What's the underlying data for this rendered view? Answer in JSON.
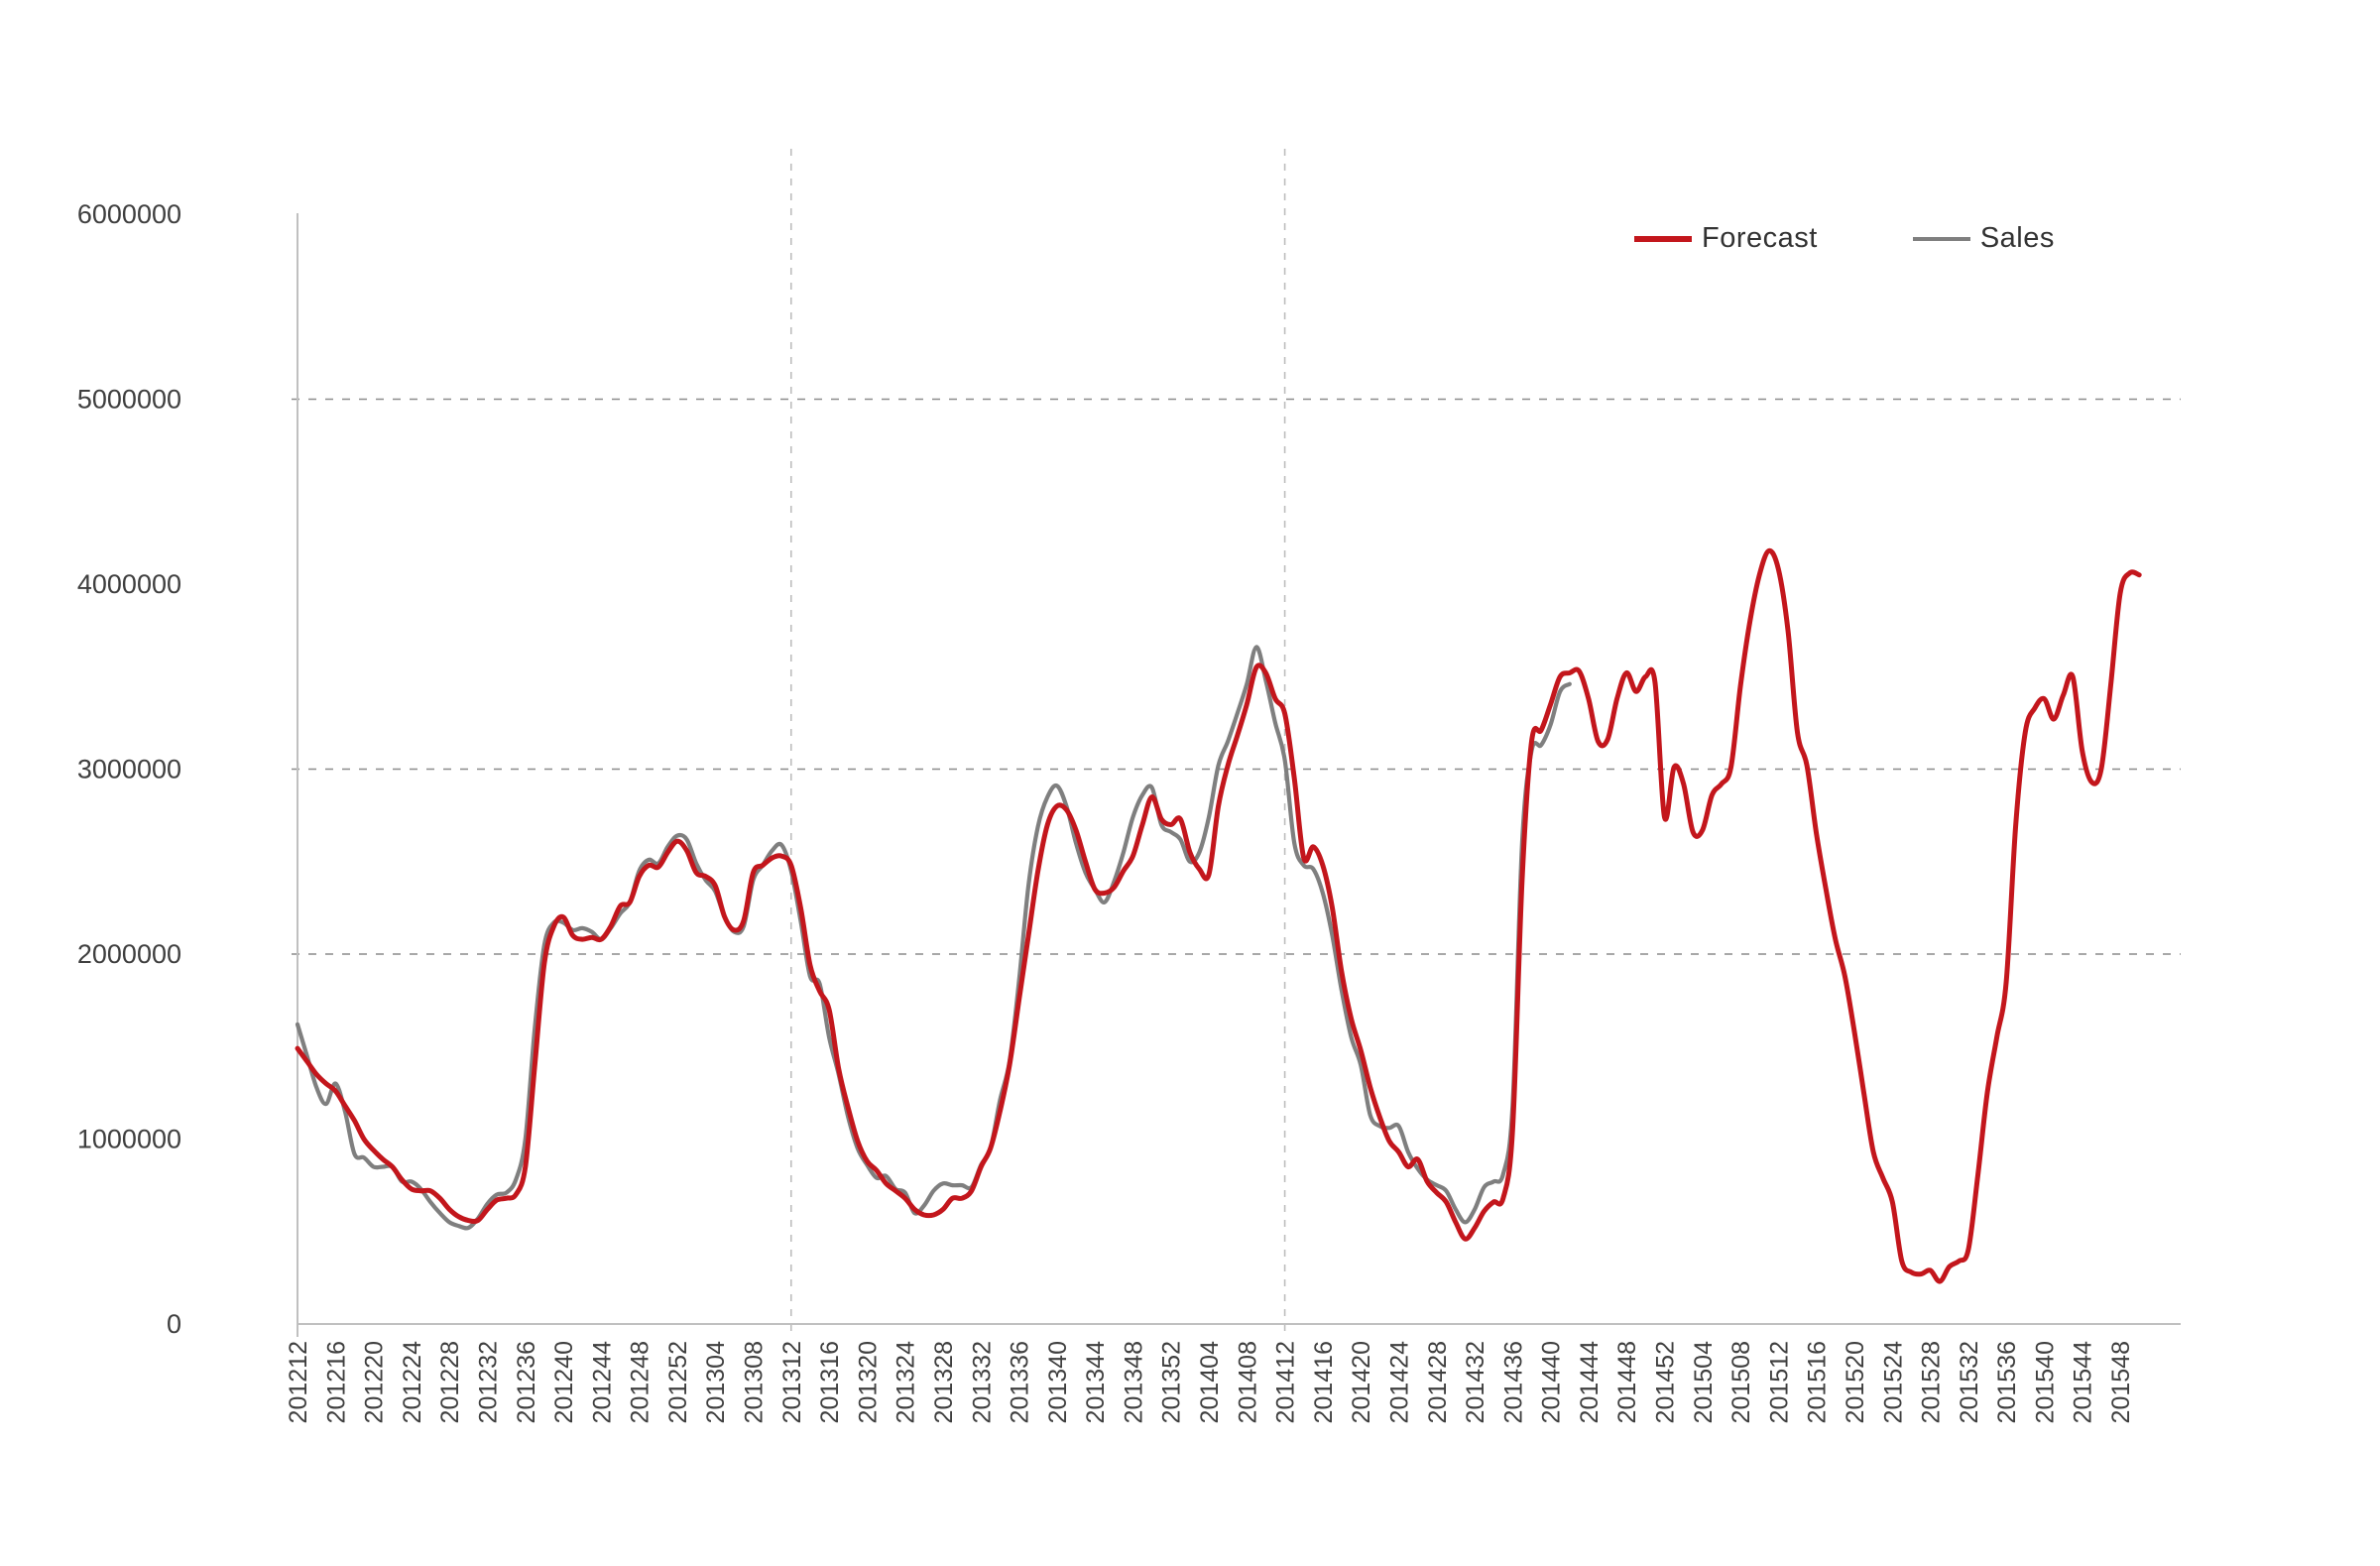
{
  "chart": {
    "legend": [
      {
        "label": "Forecast",
        "color": "#C3161C"
      },
      {
        "label": "Sales",
        "color": "#7F7F7F"
      }
    ],
    "y_axis": {
      "tick_labels": [
        "6000000",
        "5000000",
        "4000000",
        "3000000",
        "2000000",
        "1000000",
        "0"
      ],
      "min": 0,
      "max": 6000000,
      "step": 1000000
    },
    "x_axis": {
      "tick_labels": [
        "201212",
        "201216",
        "201220",
        "201224",
        "201228",
        "201232",
        "201236",
        "201240",
        "201244",
        "201248",
        "201252",
        "201304",
        "201308",
        "201312",
        "201316",
        "201320",
        "201324",
        "201328",
        "201332",
        "201336",
        "201340",
        "201344",
        "201348",
        "201352",
        "201404",
        "201408",
        "201412",
        "201416",
        "201420",
        "201424",
        "201428",
        "201432",
        "201436",
        "201440",
        "201444",
        "201448",
        "201452",
        "201504",
        "201508",
        "201512",
        "201516",
        "201520",
        "201524",
        "201528",
        "201532",
        "201536",
        "201540",
        "201544",
        "201548"
      ]
    }
  },
  "chart_data": {
    "type": "line",
    "title": "",
    "xlabel": "",
    "ylabel": "",
    "ylim": [
      0,
      6000000
    ],
    "legend_position": "top-right",
    "grid": {
      "horizontal_values": [
        2000000,
        3000000,
        5000000
      ],
      "vertical_weeks": [
        "201312",
        "201412"
      ]
    },
    "x": [
      "201212",
      "201213",
      "201214",
      "201215",
      "201216",
      "201217",
      "201218",
      "201219",
      "201220",
      "201221",
      "201222",
      "201223",
      "201224",
      "201225",
      "201226",
      "201227",
      "201228",
      "201229",
      "201230",
      "201231",
      "201232",
      "201233",
      "201234",
      "201235",
      "201236",
      "201237",
      "201238",
      "201239",
      "201240",
      "201241",
      "201242",
      "201243",
      "201244",
      "201245",
      "201246",
      "201247",
      "201248",
      "201249",
      "201250",
      "201251",
      "201252",
      "201301",
      "201302",
      "201303",
      "201304",
      "201305",
      "201306",
      "201307",
      "201308",
      "201309",
      "201310",
      "201311",
      "201312",
      "201313",
      "201314",
      "201315",
      "201316",
      "201317",
      "201318",
      "201319",
      "201320",
      "201321",
      "201322",
      "201323",
      "201324",
      "201325",
      "201326",
      "201327",
      "201328",
      "201329",
      "201330",
      "201331",
      "201332",
      "201333",
      "201334",
      "201335",
      "201336",
      "201337",
      "201338",
      "201339",
      "201340",
      "201341",
      "201342",
      "201343",
      "201344",
      "201345",
      "201346",
      "201347",
      "201348",
      "201349",
      "201350",
      "201351",
      "201352",
      "201401",
      "201402",
      "201403",
      "201404",
      "201405",
      "201406",
      "201407",
      "201408",
      "201409",
      "201410",
      "201411",
      "201412",
      "201413",
      "201414",
      "201415",
      "201416",
      "201417",
      "201418",
      "201419",
      "201420",
      "201421",
      "201422",
      "201423",
      "201424",
      "201425",
      "201426",
      "201427",
      "201428",
      "201429",
      "201430",
      "201431",
      "201432",
      "201433",
      "201434",
      "201435",
      "201436",
      "201437",
      "201438",
      "201439",
      "201440",
      "201441",
      "201442",
      "201443",
      "201444",
      "201445",
      "201446",
      "201447",
      "201448",
      "201449",
      "201450",
      "201451",
      "201452",
      "201501",
      "201502",
      "201503",
      "201504",
      "201505",
      "201506",
      "201507",
      "201508",
      "201509",
      "201510",
      "201511",
      "201512",
      "201513",
      "201514",
      "201515",
      "201516",
      "201517",
      "201518",
      "201519",
      "201520",
      "201521",
      "201522",
      "201523",
      "201524",
      "201525",
      "201526",
      "201527",
      "201528",
      "201529",
      "201530",
      "201531",
      "201532",
      "201533",
      "201534",
      "201535",
      "201536",
      "201537",
      "201538",
      "201539",
      "201540",
      "201541",
      "201542",
      "201543",
      "201544",
      "201545",
      "201546",
      "201547",
      "201548",
      "201549",
      "201550"
    ],
    "series": [
      {
        "name": "Forecast",
        "color": "#C3161C",
        "values": [
          1490000,
          1420000,
          1350000,
          1300000,
          1260000,
          1180000,
          1100000,
          1000000,
          940000,
          890000,
          850000,
          780000,
          730000,
          720000,
          720000,
          680000,
          620000,
          580000,
          560000,
          560000,
          620000,
          670000,
          680000,
          700000,
          850000,
          1400000,
          1950000,
          2150000,
          2200000,
          2100000,
          2080000,
          2090000,
          2080000,
          2150000,
          2260000,
          2280000,
          2420000,
          2480000,
          2470000,
          2550000,
          2610000,
          2560000,
          2440000,
          2420000,
          2370000,
          2200000,
          2130000,
          2180000,
          2440000,
          2480000,
          2520000,
          2530000,
          2480000,
          2250000,
          1940000,
          1800000,
          1700000,
          1380000,
          1170000,
          990000,
          880000,
          830000,
          760000,
          720000,
          680000,
          620000,
          590000,
          590000,
          620000,
          680000,
          680000,
          720000,
          850000,
          950000,
          1150000,
          1400000,
          1750000,
          2100000,
          2450000,
          2700000,
          2800000,
          2780000,
          2670000,
          2500000,
          2350000,
          2330000,
          2360000,
          2450000,
          2530000,
          2700000,
          2850000,
          2730000,
          2700000,
          2730000,
          2550000,
          2460000,
          2430000,
          2800000,
          3020000,
          3180000,
          3350000,
          3550000,
          3520000,
          3380000,
          3300000,
          2950000,
          2520000,
          2580000,
          2480000,
          2250000,
          1900000,
          1650000,
          1480000,
          1280000,
          1120000,
          990000,
          930000,
          850000,
          890000,
          770000,
          710000,
          660000,
          550000,
          460000,
          520000,
          610000,
          660000,
          680000,
          1050000,
          2400000,
          3150000,
          3210000,
          3350000,
          3500000,
          3520000,
          3530000,
          3380000,
          3150000,
          3160000,
          3380000,
          3520000,
          3420000,
          3500000,
          3470000,
          2740000,
          3010000,
          2920000,
          2660000,
          2670000,
          2860000,
          2920000,
          3010000,
          3450000,
          3800000,
          4050000,
          4180000,
          4080000,
          3750000,
          3200000,
          3020000,
          2650000,
          2350000,
          2080000,
          1880000,
          1580000,
          1250000,
          930000,
          790000,
          660000,
          340000,
          280000,
          270000,
          290000,
          230000,
          310000,
          340000,
          400000,
          800000,
          1250000,
          1550000,
          1850000,
          2700000,
          3200000,
          3330000,
          3380000,
          3270000,
          3400000,
          3500000,
          3100000,
          2930000,
          3000000,
          3450000,
          3950000,
          4060000,
          4050000
        ]
      },
      {
        "name": "Sales",
        "color": "#7F7F7F",
        "values": [
          1620000,
          1450000,
          1280000,
          1190000,
          1300000,
          1150000,
          920000,
          900000,
          850000,
          850000,
          850000,
          770000,
          770000,
          730000,
          660000,
          600000,
          550000,
          530000,
          520000,
          570000,
          650000,
          700000,
          710000,
          780000,
          1000000,
          1600000,
          2050000,
          2170000,
          2170000,
          2130000,
          2140000,
          2120000,
          2080000,
          2140000,
          2220000,
          2280000,
          2450000,
          2510000,
          2490000,
          2580000,
          2640000,
          2620000,
          2490000,
          2400000,
          2340000,
          2200000,
          2120000,
          2150000,
          2400000,
          2480000,
          2560000,
          2590000,
          2450000,
          2180000,
          1880000,
          1840000,
          1550000,
          1350000,
          1120000,
          950000,
          860000,
          790000,
          800000,
          730000,
          710000,
          600000,
          640000,
          720000,
          760000,
          750000,
          750000,
          740000,
          860000,
          950000,
          1210000,
          1420000,
          1850000,
          2370000,
          2690000,
          2850000,
          2910000,
          2800000,
          2600000,
          2440000,
          2350000,
          2280000,
          2390000,
          2550000,
          2740000,
          2860000,
          2900000,
          2700000,
          2660000,
          2620000,
          2500000,
          2550000,
          2740000,
          3020000,
          3150000,
          3300000,
          3460000,
          3660000,
          3480000,
          3250000,
          3050000,
          2600000,
          2480000,
          2460000,
          2330000,
          2100000,
          1800000,
          1550000,
          1400000,
          1130000,
          1070000,
          1060000,
          1070000,
          930000,
          840000,
          780000,
          750000,
          720000,
          620000,
          550000,
          620000,
          740000,
          770000,
          810000,
          1180000,
          2600000,
          3100000,
          3130000,
          3240000,
          3420000,
          3460000
        ]
      }
    ]
  }
}
